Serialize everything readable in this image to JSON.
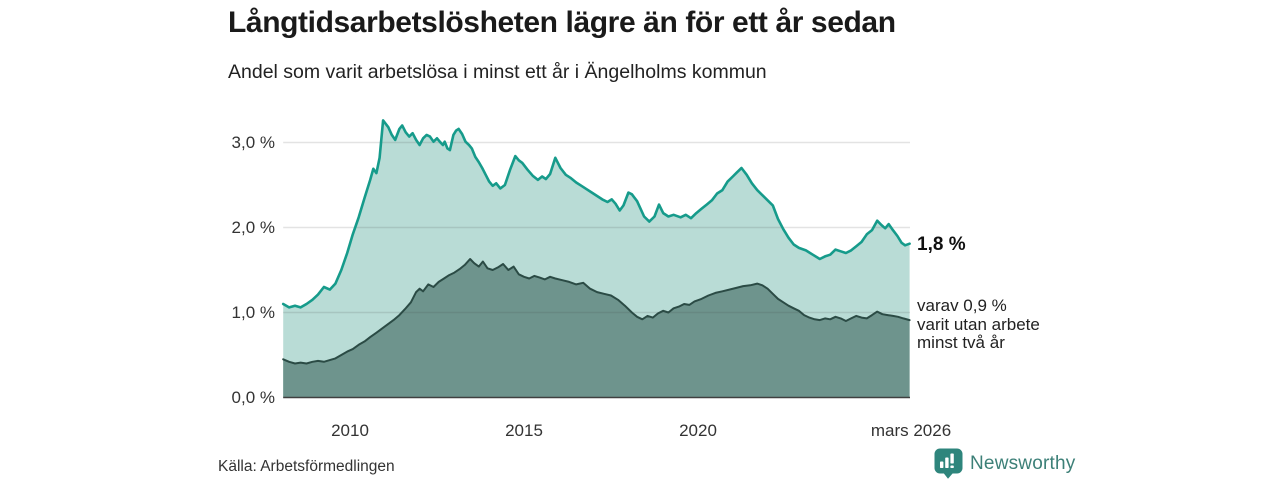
{
  "header": {
    "title": "Långtidsarbetslösheten lägre än för ett år sedan",
    "subtitle": "Andel som varit arbetslösa i minst ett år i Ängelholms kommun"
  },
  "annotations": {
    "total_end_label": "1,8 %",
    "two_year_lines": [
      "varav 0,9 %",
      "varit utan arbete",
      "minst två år"
    ]
  },
  "source": {
    "label": "Källa: Arbetsförmedlingen"
  },
  "branding": {
    "name": "Newsworthy",
    "icon": "newsworthy-bubble-chart-icon"
  },
  "colors": {
    "accent_teal_line": "#169b8b",
    "light_area_fill": "#b9dcd6",
    "dark_area_fill": "#6e948d",
    "dark_line": "#2b4b45",
    "gridline": "rgba(70,70,70,0.15)",
    "axis": "#404040",
    "brand_teal": "#2e857c"
  },
  "chart_data": {
    "type": "area",
    "title": "Långtidsarbetslösheten lägre än för ett år sedan",
    "subtitle": "Andel som varit arbetslösa i minst ett år i Ängelholms kommun",
    "unit": "%",
    "grid": "horizontal",
    "x_axis": {
      "range": [
        2008.08,
        2026.08
      ],
      "ticks": [
        {
          "year": 2010,
          "label": "2010"
        },
        {
          "year": 2015,
          "label": "2015"
        },
        {
          "year": 2020,
          "label": "2020"
        },
        {
          "year": 2026.08,
          "label": "mars 2026"
        }
      ]
    },
    "y_axis": {
      "range": [
        0,
        3.45
      ],
      "ticks": [
        {
          "value": 3.0,
          "label": "3,0 %"
        },
        {
          "value": 2.0,
          "label": "2,0 %"
        },
        {
          "value": 1.0,
          "label": "1,0 %"
        },
        {
          "value": 0.0,
          "label": "0,0 %"
        }
      ]
    },
    "series": [
      {
        "name": "arbetslösa minst ett år",
        "end_value": 1.8,
        "points": [
          [
            2008.08,
            1.1
          ],
          [
            2008.25,
            1.06
          ],
          [
            2008.42,
            1.08
          ],
          [
            2008.58,
            1.06
          ],
          [
            2008.75,
            1.1
          ],
          [
            2008.92,
            1.15
          ],
          [
            2009.08,
            1.21
          ],
          [
            2009.25,
            1.3
          ],
          [
            2009.42,
            1.27
          ],
          [
            2009.58,
            1.34
          ],
          [
            2009.75,
            1.5
          ],
          [
            2009.92,
            1.7
          ],
          [
            2010.08,
            1.92
          ],
          [
            2010.25,
            2.12
          ],
          [
            2010.42,
            2.35
          ],
          [
            2010.58,
            2.56
          ],
          [
            2010.67,
            2.69
          ],
          [
            2010.76,
            2.64
          ],
          [
            2010.85,
            2.82
          ],
          [
            2010.95,
            3.26
          ],
          [
            2011.1,
            3.18
          ],
          [
            2011.2,
            3.09
          ],
          [
            2011.3,
            3.03
          ],
          [
            2011.42,
            3.16
          ],
          [
            2011.5,
            3.2
          ],
          [
            2011.6,
            3.12
          ],
          [
            2011.7,
            3.07
          ],
          [
            2011.8,
            3.11
          ],
          [
            2011.9,
            3.03
          ],
          [
            2012.0,
            2.97
          ],
          [
            2012.1,
            3.05
          ],
          [
            2012.2,
            3.09
          ],
          [
            2012.3,
            3.07
          ],
          [
            2012.4,
            3.01
          ],
          [
            2012.5,
            3.05
          ],
          [
            2012.58,
            3.01
          ],
          [
            2012.67,
            2.97
          ],
          [
            2012.72,
            3.01
          ],
          [
            2012.8,
            2.93
          ],
          [
            2012.87,
            2.91
          ],
          [
            2012.97,
            3.09
          ],
          [
            2013.05,
            3.14
          ],
          [
            2013.12,
            3.16
          ],
          [
            2013.22,
            3.1
          ],
          [
            2013.32,
            3.01
          ],
          [
            2013.42,
            2.97
          ],
          [
            2013.5,
            2.93
          ],
          [
            2013.6,
            2.83
          ],
          [
            2013.7,
            2.77
          ],
          [
            2013.8,
            2.7
          ],
          [
            2013.9,
            2.62
          ],
          [
            2014.0,
            2.54
          ],
          [
            2014.1,
            2.49
          ],
          [
            2014.2,
            2.52
          ],
          [
            2014.32,
            2.46
          ],
          [
            2014.45,
            2.5
          ],
          [
            2014.6,
            2.68
          ],
          [
            2014.75,
            2.84
          ],
          [
            2014.85,
            2.79
          ],
          [
            2014.95,
            2.76
          ],
          [
            2015.1,
            2.68
          ],
          [
            2015.25,
            2.61
          ],
          [
            2015.4,
            2.56
          ],
          [
            2015.52,
            2.6
          ],
          [
            2015.63,
            2.57
          ],
          [
            2015.75,
            2.63
          ],
          [
            2015.9,
            2.82
          ],
          [
            2016.05,
            2.7
          ],
          [
            2016.2,
            2.62
          ],
          [
            2016.35,
            2.58
          ],
          [
            2016.5,
            2.53
          ],
          [
            2016.65,
            2.49
          ],
          [
            2016.8,
            2.45
          ],
          [
            2016.95,
            2.41
          ],
          [
            2017.1,
            2.37
          ],
          [
            2017.25,
            2.33
          ],
          [
            2017.4,
            2.3
          ],
          [
            2017.52,
            2.33
          ],
          [
            2017.63,
            2.28
          ],
          [
            2017.75,
            2.2
          ],
          [
            2017.86,
            2.26
          ],
          [
            2018.0,
            2.41
          ],
          [
            2018.1,
            2.39
          ],
          [
            2018.25,
            2.31
          ],
          [
            2018.45,
            2.13
          ],
          [
            2018.6,
            2.07
          ],
          [
            2018.75,
            2.13
          ],
          [
            2018.88,
            2.27
          ],
          [
            2019.0,
            2.17
          ],
          [
            2019.15,
            2.13
          ],
          [
            2019.3,
            2.15
          ],
          [
            2019.5,
            2.12
          ],
          [
            2019.65,
            2.15
          ],
          [
            2019.8,
            2.11
          ],
          [
            2019.95,
            2.17
          ],
          [
            2020.1,
            2.22
          ],
          [
            2020.25,
            2.27
          ],
          [
            2020.4,
            2.32
          ],
          [
            2020.55,
            2.4
          ],
          [
            2020.7,
            2.44
          ],
          [
            2020.85,
            2.54
          ],
          [
            2021.0,
            2.6
          ],
          [
            2021.12,
            2.65
          ],
          [
            2021.25,
            2.7
          ],
          [
            2021.4,
            2.62
          ],
          [
            2021.55,
            2.52
          ],
          [
            2021.7,
            2.44
          ],
          [
            2021.85,
            2.38
          ],
          [
            2022.0,
            2.32
          ],
          [
            2022.15,
            2.26
          ],
          [
            2022.3,
            2.1
          ],
          [
            2022.45,
            1.98
          ],
          [
            2022.6,
            1.88
          ],
          [
            2022.75,
            1.8
          ],
          [
            2022.9,
            1.76
          ],
          [
            2023.1,
            1.73
          ],
          [
            2023.3,
            1.68
          ],
          [
            2023.5,
            1.63
          ],
          [
            2023.65,
            1.66
          ],
          [
            2023.8,
            1.68
          ],
          [
            2023.95,
            1.74
          ],
          [
            2024.1,
            1.72
          ],
          [
            2024.25,
            1.7
          ],
          [
            2024.4,
            1.73
          ],
          [
            2024.55,
            1.78
          ],
          [
            2024.7,
            1.83
          ],
          [
            2024.85,
            1.92
          ],
          [
            2025.0,
            1.97
          ],
          [
            2025.15,
            2.08
          ],
          [
            2025.27,
            2.03
          ],
          [
            2025.38,
            1.99
          ],
          [
            2025.48,
            2.04
          ],
          [
            2025.6,
            1.97
          ],
          [
            2025.73,
            1.9
          ],
          [
            2025.85,
            1.82
          ],
          [
            2025.95,
            1.79
          ],
          [
            2026.08,
            1.81
          ]
        ]
      },
      {
        "name": "utan arbete minst två år",
        "end_value": 0.9,
        "points": [
          [
            2008.08,
            0.45
          ],
          [
            2008.25,
            0.42
          ],
          [
            2008.42,
            0.4
          ],
          [
            2008.58,
            0.41
          ],
          [
            2008.75,
            0.4
          ],
          [
            2008.92,
            0.42
          ],
          [
            2009.08,
            0.43
          ],
          [
            2009.25,
            0.42
          ],
          [
            2009.42,
            0.44
          ],
          [
            2009.58,
            0.46
          ],
          [
            2009.75,
            0.5
          ],
          [
            2009.92,
            0.54
          ],
          [
            2010.08,
            0.57
          ],
          [
            2010.25,
            0.62
          ],
          [
            2010.42,
            0.66
          ],
          [
            2010.58,
            0.71
          ],
          [
            2010.75,
            0.76
          ],
          [
            2010.92,
            0.81
          ],
          [
            2011.08,
            0.86
          ],
          [
            2011.25,
            0.91
          ],
          [
            2011.42,
            0.97
          ],
          [
            2011.58,
            1.04
          ],
          [
            2011.75,
            1.12
          ],
          [
            2011.9,
            1.24
          ],
          [
            2012.0,
            1.28
          ],
          [
            2012.1,
            1.25
          ],
          [
            2012.25,
            1.33
          ],
          [
            2012.4,
            1.3
          ],
          [
            2012.55,
            1.36
          ],
          [
            2012.7,
            1.4
          ],
          [
            2012.85,
            1.44
          ],
          [
            2013.0,
            1.47
          ],
          [
            2013.15,
            1.51
          ],
          [
            2013.3,
            1.56
          ],
          [
            2013.45,
            1.63
          ],
          [
            2013.57,
            1.58
          ],
          [
            2013.7,
            1.54
          ],
          [
            2013.82,
            1.6
          ],
          [
            2013.95,
            1.52
          ],
          [
            2014.1,
            1.5
          ],
          [
            2014.25,
            1.53
          ],
          [
            2014.4,
            1.57
          ],
          [
            2014.55,
            1.5
          ],
          [
            2014.7,
            1.54
          ],
          [
            2014.85,
            1.45
          ],
          [
            2015.0,
            1.42
          ],
          [
            2015.15,
            1.4
          ],
          [
            2015.3,
            1.43
          ],
          [
            2015.45,
            1.41
          ],
          [
            2015.6,
            1.39
          ],
          [
            2015.75,
            1.42
          ],
          [
            2015.9,
            1.4
          ],
          [
            2016.1,
            1.38
          ],
          [
            2016.3,
            1.36
          ],
          [
            2016.5,
            1.33
          ],
          [
            2016.7,
            1.35
          ],
          [
            2016.9,
            1.28
          ],
          [
            2017.1,
            1.24
          ],
          [
            2017.3,
            1.22
          ],
          [
            2017.5,
            1.2
          ],
          [
            2017.7,
            1.15
          ],
          [
            2017.9,
            1.08
          ],
          [
            2018.1,
            1.0
          ],
          [
            2018.25,
            0.95
          ],
          [
            2018.4,
            0.92
          ],
          [
            2018.55,
            0.96
          ],
          [
            2018.7,
            0.94
          ],
          [
            2018.85,
            0.99
          ],
          [
            2019.0,
            1.02
          ],
          [
            2019.15,
            1.0
          ],
          [
            2019.3,
            1.05
          ],
          [
            2019.45,
            1.07
          ],
          [
            2019.6,
            1.1
          ],
          [
            2019.75,
            1.09
          ],
          [
            2019.9,
            1.13
          ],
          [
            2020.1,
            1.16
          ],
          [
            2020.3,
            1.2
          ],
          [
            2020.5,
            1.23
          ],
          [
            2020.7,
            1.25
          ],
          [
            2020.9,
            1.27
          ],
          [
            2021.1,
            1.29
          ],
          [
            2021.3,
            1.31
          ],
          [
            2021.5,
            1.32
          ],
          [
            2021.7,
            1.34
          ],
          [
            2021.85,
            1.32
          ],
          [
            2022.0,
            1.28
          ],
          [
            2022.15,
            1.22
          ],
          [
            2022.3,
            1.16
          ],
          [
            2022.45,
            1.12
          ],
          [
            2022.6,
            1.08
          ],
          [
            2022.75,
            1.05
          ],
          [
            2022.9,
            1.02
          ],
          [
            2023.05,
            0.97
          ],
          [
            2023.2,
            0.94
          ],
          [
            2023.35,
            0.92
          ],
          [
            2023.5,
            0.91
          ],
          [
            2023.65,
            0.93
          ],
          [
            2023.8,
            0.92
          ],
          [
            2023.95,
            0.95
          ],
          [
            2024.1,
            0.93
          ],
          [
            2024.25,
            0.9
          ],
          [
            2024.4,
            0.93
          ],
          [
            2024.55,
            0.96
          ],
          [
            2024.7,
            0.94
          ],
          [
            2024.85,
            0.93
          ],
          [
            2025.0,
            0.97
          ],
          [
            2025.15,
            1.01
          ],
          [
            2025.3,
            0.98
          ],
          [
            2025.45,
            0.97
          ],
          [
            2025.6,
            0.96
          ],
          [
            2025.75,
            0.95
          ],
          [
            2025.9,
            0.93
          ],
          [
            2026.08,
            0.91
          ]
        ]
      }
    ]
  }
}
